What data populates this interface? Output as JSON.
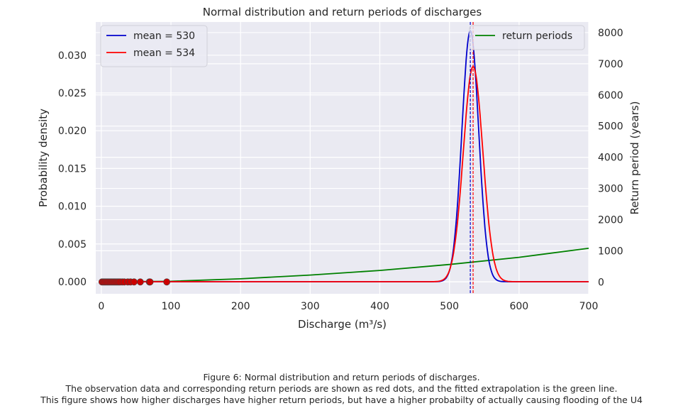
{
  "chart_data": {
    "type": "line",
    "title": "Normal distribution and return periods of discharges",
    "xlabel": "Discharge (m³/s)",
    "ylabel": "Probability density",
    "y2label": "Return period (years)",
    "xlim": [
      -8,
      700
    ],
    "ylim": [
      -0.0016,
      0.0344
    ],
    "y2lim": [
      -380,
      8340
    ],
    "xticks": [
      0,
      100,
      200,
      300,
      400,
      500,
      600,
      700
    ],
    "yticks": [
      0.0,
      0.005,
      0.01,
      0.015,
      0.02,
      0.025,
      0.03
    ],
    "ytick_labels": [
      "0.000",
      "0.005",
      "0.010",
      "0.015",
      "0.020",
      "0.025",
      "0.030"
    ],
    "y2ticks": [
      0,
      1000,
      2000,
      3000,
      4000,
      5000,
      6000,
      7000,
      8000
    ],
    "grid": true,
    "series": [
      {
        "name": "mean = 530",
        "axis": "left",
        "kind": "normal_pdf",
        "mean": 530,
        "std": 12,
        "color": "#0000cc"
      },
      {
        "name": "mean = 534",
        "axis": "left",
        "kind": "normal_pdf",
        "mean": 534,
        "std": 14,
        "color": "#ff0000"
      },
      {
        "name": "return periods",
        "axis": "right",
        "kind": "curve",
        "x": [
          0,
          100,
          200,
          300,
          400,
          500,
          600,
          700
        ],
        "y": [
          0,
          20,
          100,
          220,
          370,
          560,
          790,
          1080
        ],
        "color": "#008000"
      }
    ],
    "vlines": [
      {
        "x": 530,
        "color": "#0000cc",
        "style": "dashed"
      },
      {
        "x": 534,
        "color": "#ff0000",
        "style": "dashed"
      }
    ],
    "observations": {
      "name": "observations",
      "color": "#cc0000",
      "x": [
        1,
        3,
        5,
        7,
        9,
        11,
        13,
        15,
        17,
        19,
        21,
        23,
        25,
        27,
        30,
        33,
        38,
        42,
        47,
        56,
        69,
        70,
        94
      ],
      "y": [
        0,
        0,
        0,
        0,
        0,
        0,
        0,
        0,
        0,
        0,
        0,
        0,
        0,
        0,
        0,
        0,
        0,
        0,
        0,
        0,
        0,
        0,
        0
      ]
    },
    "legends": [
      {
        "position": "top-left",
        "entries": [
          "mean = 530",
          "mean = 534"
        ]
      },
      {
        "position": "top-right",
        "entries": [
          "return periods"
        ]
      }
    ]
  },
  "caption": {
    "line1": "Figure 6: Normal distribution and return periods of discharges.",
    "line2": "The observation data and corresponding return periods are shown as red dots, and the fitted extrapolation is the green line.",
    "line3": "This figure shows how higher discharges have higher return periods, but have a higher probabilty of actually causing flooding of the U4"
  },
  "colors": {
    "plot_background": "#eaeaf2",
    "grid": "#ffffff",
    "text": "#262626"
  }
}
